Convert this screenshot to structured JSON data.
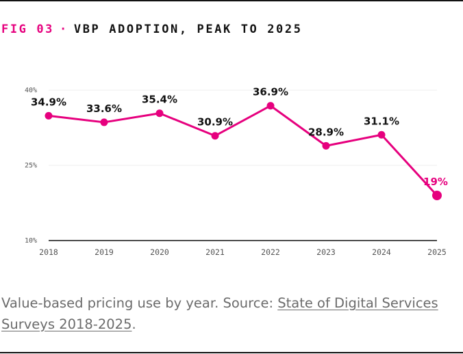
{
  "figure": {
    "label": "FIG 03",
    "separator": "·",
    "title": "VBP ADOPTION, PEAK TO 2025"
  },
  "caption": {
    "text": "Value-based pricing use by year. Source: ",
    "link_text": "State of Digital Services Surveys 2018-2025",
    "suffix": "."
  },
  "colors": {
    "accent": "#e6007e",
    "text": "#111111",
    "muted": "#6b6b6b",
    "grid": "#ececec"
  },
  "chart_data": {
    "type": "line",
    "title": "VBP ADOPTION, PEAK TO 2025",
    "xlabel": "",
    "ylabel": "",
    "categories": [
      "2018",
      "2019",
      "2020",
      "2021",
      "2022",
      "2023",
      "2024",
      "2025"
    ],
    "series": [
      {
        "values": [
          34.9,
          33.6,
          35.4,
          30.9,
          36.9,
          28.9,
          31.1,
          19
        ],
        "labels": [
          "34.9%",
          "33.6%",
          "35.4%",
          "30.9%",
          "36.9%",
          "28.9%",
          "31.1%",
          "19%"
        ]
      }
    ],
    "highlight": "2025",
    "ylim": [
      10,
      40
    ],
    "yticks": [
      10,
      25,
      40
    ],
    "ytick_labels": [
      "10%",
      "25%",
      "40%"
    ],
    "grid": true,
    "legend": "none"
  }
}
